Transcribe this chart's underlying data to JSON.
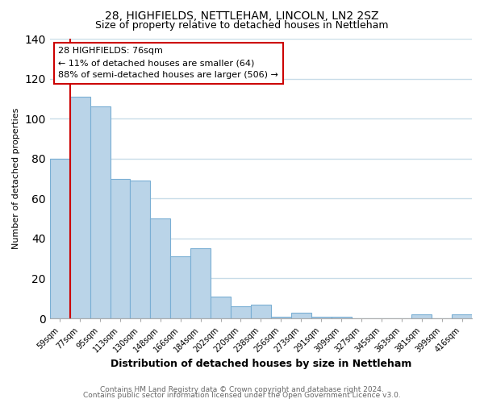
{
  "title": "28, HIGHFIELDS, NETTLEHAM, LINCOLN, LN2 2SZ",
  "subtitle": "Size of property relative to detached houses in Nettleham",
  "xlabel": "Distribution of detached houses by size in Nettleham",
  "ylabel": "Number of detached properties",
  "footer_line1": "Contains HM Land Registry data © Crown copyright and database right 2024.",
  "footer_line2": "Contains public sector information licensed under the Open Government Licence v3.0.",
  "bar_labels": [
    "59sqm",
    "77sqm",
    "95sqm",
    "113sqm",
    "130sqm",
    "148sqm",
    "166sqm",
    "184sqm",
    "202sqm",
    "220sqm",
    "238sqm",
    "256sqm",
    "273sqm",
    "291sqm",
    "309sqm",
    "327sqm",
    "345sqm",
    "363sqm",
    "381sqm",
    "399sqm",
    "416sqm"
  ],
  "bar_values": [
    80,
    111,
    106,
    70,
    69,
    50,
    31,
    35,
    11,
    6,
    7,
    1,
    3,
    1,
    1,
    0,
    0,
    0,
    2,
    0,
    2
  ],
  "bar_color": "#bad4e8",
  "bar_edge_color": "#7aafd4",
  "highlight_line_color": "#cc0000",
  "highlight_bar_index": 1,
  "ylim": [
    0,
    140
  ],
  "yticks": [
    0,
    20,
    40,
    60,
    80,
    100,
    120,
    140
  ],
  "annotation_title": "28 HIGHFIELDS: 76sqm",
  "annotation_line1": "← 11% of detached houses are smaller (64)",
  "annotation_line2": "88% of semi-detached houses are larger (506) →",
  "annotation_box_facecolor": "#ffffff",
  "annotation_box_edgecolor": "#cc0000",
  "background_color": "#ffffff",
  "plot_background": "#ffffff",
  "grid_color": "#c8dce8",
  "title_fontsize": 10,
  "subtitle_fontsize": 9,
  "xlabel_fontsize": 9,
  "ylabel_fontsize": 8,
  "tick_fontsize": 7,
  "footer_fontsize": 6.5
}
